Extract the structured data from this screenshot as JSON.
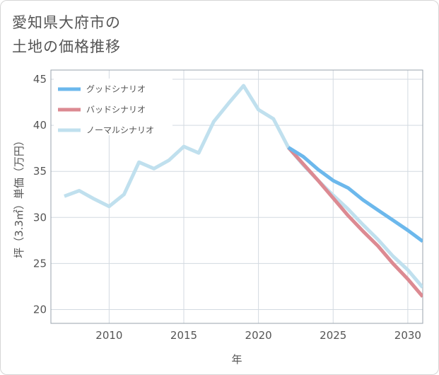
{
  "title_lines": [
    "愛知県大府市の",
    "土地の価格推移"
  ],
  "chart_data": {
    "type": "line",
    "title": "愛知県大府市の土地の価格推移",
    "xlabel": "年",
    "ylabel": "坪（3.3㎡）単価（万円）",
    "xlim": [
      2006.1,
      2031
    ],
    "ylim": [
      18.5,
      46
    ],
    "x_ticks": [
      2010,
      2015,
      2020,
      2025,
      2030
    ],
    "y_ticks": [
      20,
      25,
      30,
      35,
      40,
      45
    ],
    "grid": true,
    "legend_position": "top-left",
    "series": [
      {
        "name": "グッドシナリオ",
        "color": "#6cb8ec",
        "x": [
          2022,
          2023,
          2024,
          2025,
          2026,
          2027,
          2028,
          2029,
          2030,
          2031
        ],
        "y": [
          37.6,
          36.6,
          35.2,
          34.0,
          33.2,
          31.9,
          30.8,
          29.7,
          28.6,
          27.4
        ]
      },
      {
        "name": "バッドシナリオ",
        "color": "#dc8a92",
        "x": [
          2022,
          2023,
          2024,
          2025,
          2026,
          2027,
          2028,
          2029,
          2030,
          2031
        ],
        "y": [
          37.6,
          35.8,
          34.0,
          32.1,
          30.2,
          28.5,
          26.9,
          25.0,
          23.3,
          21.4
        ]
      },
      {
        "name": "ノーマルシナリオ",
        "color": "#c0e0ee",
        "x": [
          2007,
          2008,
          2009,
          2010,
          2011,
          2012,
          2013,
          2014,
          2015,
          2016,
          2017,
          2018,
          2019,
          2020,
          2021,
          2022,
          2023,
          2024,
          2025,
          2026,
          2027,
          2028,
          2029,
          2030,
          2031
        ],
        "y": [
          32.3,
          32.9,
          32.0,
          31.2,
          32.5,
          36.0,
          35.3,
          36.2,
          37.7,
          37.0,
          40.4,
          42.4,
          44.3,
          41.7,
          40.7,
          37.6,
          35.7,
          34.0,
          32.4,
          30.9,
          29.2,
          27.6,
          25.8,
          24.3,
          22.4
        ]
      }
    ]
  }
}
